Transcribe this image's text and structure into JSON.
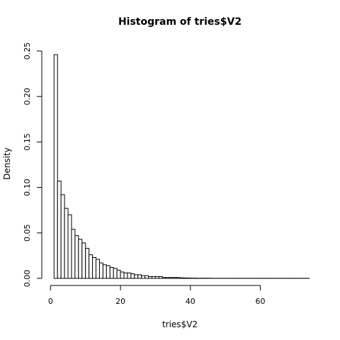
{
  "chart_data": {
    "type": "bar",
    "title": "Histogram of tries$V2",
    "xlabel": "tries$V2",
    "ylabel": "Density",
    "xlim": [
      0,
      74
    ],
    "ylim": [
      0,
      0.25
    ],
    "x_ticks": [
      "0",
      "20",
      "40",
      "60"
    ],
    "y_ticks": [
      "0.00",
      "0.05",
      "0.10",
      "0.15",
      "0.20",
      "0.25"
    ],
    "bin_width": 1,
    "bin_start": 1,
    "values": [
      0.246,
      0.107,
      0.092,
      0.077,
      0.07,
      0.054,
      0.047,
      0.043,
      0.039,
      0.033,
      0.026,
      0.023,
      0.021,
      0.017,
      0.015,
      0.014,
      0.012,
      0.011,
      0.009,
      0.007,
      0.006,
      0.006,
      0.005,
      0.004,
      0.004,
      0.003,
      0.003,
      0.002,
      0.002,
      0.002,
      0.002,
      0.001,
      0.001,
      0.001,
      0.001,
      0.001,
      0.0006,
      0.0005,
      0.0004,
      0.0003,
      0.0003,
      0.0002,
      0.0002,
      0.0002,
      0.0002,
      0.0001,
      0.0001,
      0.0001,
      0.0001,
      0.0001,
      0.0001,
      0.0001,
      0.0001,
      0.0001,
      0.0001,
      0.0001,
      0.0001,
      0.0001,
      0.0001,
      0.0001,
      0.0001,
      0.0001,
      0.0001,
      0.0001,
      0.0001,
      0.0001,
      0.0001,
      0.0001,
      0.0001,
      0.0001,
      0.0001,
      0.0001,
      0.0001
    ],
    "grid": false,
    "legend": "none"
  }
}
